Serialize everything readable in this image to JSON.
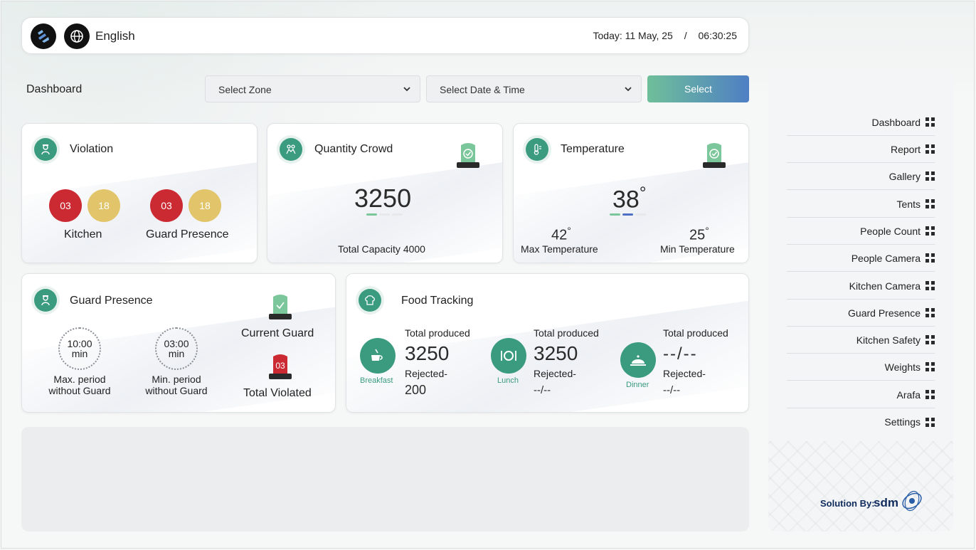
{
  "header": {
    "language": "English",
    "date_label": "Today: 11 May, 25",
    "separator": "/",
    "time": "06:30:25"
  },
  "toolbar": {
    "page_title": "Dashboard",
    "zone_placeholder": "Select Zone",
    "datetime_placeholder": "Select Date & Time",
    "select_label": "Select"
  },
  "violation": {
    "title": "Violation",
    "kitchen": {
      "red": "03",
      "yellow": "18",
      "label": "Kitchen"
    },
    "guard": {
      "red": "03",
      "yellow": "18",
      "label": "Guard Presence"
    }
  },
  "crowd": {
    "title": "Quantity Crowd",
    "value": "3250",
    "capacity_label": "Total Capacity 4000"
  },
  "temperature": {
    "title": "Temperature",
    "current": "38",
    "max": "42",
    "max_label": "Max Temperature",
    "min": "25",
    "min_label": "Min Temperature",
    "degree": "°"
  },
  "guard_presence": {
    "title": "Guard Presence",
    "max_time": "10:00",
    "min_unit": "min",
    "max_label_1": "Max. period",
    "max_label_2": "without Guard",
    "min_time": "03:00",
    "min_label_1": "Min. period",
    "min_label_2": "without Guard",
    "current_guard_label": "Current Guard",
    "violated_count": "03",
    "violated_label": "Total Violated"
  },
  "food": {
    "title": "Food Tracking",
    "meals": [
      {
        "name": "Breakfast",
        "produced_label": "Total produced",
        "produced": "3250",
        "rejected_label": "Rejected-",
        "rejected": "200"
      },
      {
        "name": "Lunch",
        "produced_label": "Total produced",
        "produced": "3250",
        "rejected_label": "Rejected-",
        "rejected": "--/--"
      },
      {
        "name": "Dinner",
        "produced_label": "Total produced",
        "produced": "--/--",
        "rejected_label": "Rejected-",
        "rejected": "--/--"
      }
    ]
  },
  "sidebar": {
    "items": [
      {
        "label": "Dashboard"
      },
      {
        "label": "Report"
      },
      {
        "label": "Gallery"
      },
      {
        "label": "Tents"
      },
      {
        "label": "People Count"
      },
      {
        "label": "People Camera"
      },
      {
        "label": "Kitchen Camera"
      },
      {
        "label": "Guard Presence"
      },
      {
        "label": "Kitchen Safety"
      },
      {
        "label": "Weights"
      },
      {
        "label": "Arafa"
      },
      {
        "label": "Settings"
      }
    ],
    "solution_label": "Solution By:",
    "brand": "sdm"
  },
  "colors": {
    "accent_green": "#3a9b7e",
    "red": "#cc2a33",
    "yellow": "#e2c56a",
    "button_gradient_start": "#6fbf9a",
    "button_gradient_end": "#4e7fc4"
  }
}
